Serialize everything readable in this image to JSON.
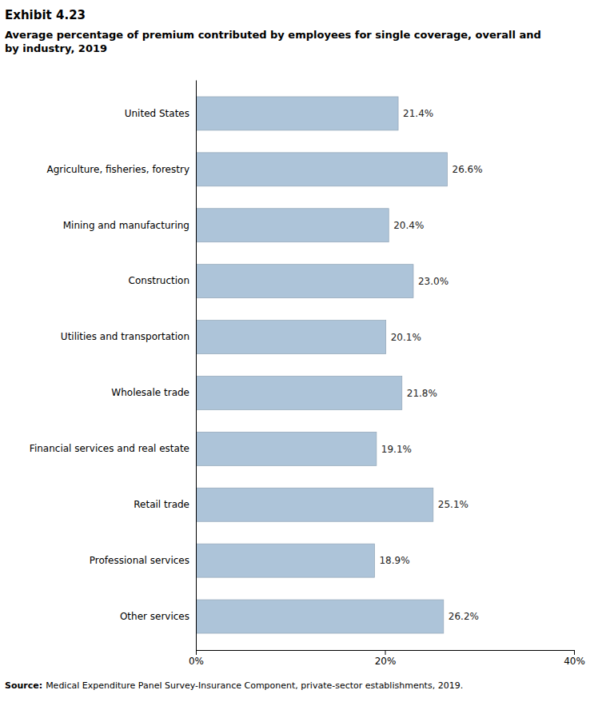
{
  "chart_data": {
    "type": "bar",
    "orientation": "horizontal",
    "title": "Exhibit 4.23",
    "subtitle": "Average percentage of premium contributed by employees for single coverage, overall and\nby industry, 2019",
    "categories": [
      "United States",
      "Agriculture, fisheries, forestry",
      "Mining and manufacturing",
      "Construction",
      "Utilities and transportation",
      "Wholesale trade",
      "Financial services and real estate",
      "Retail trade",
      "Professional services",
      "Other services"
    ],
    "values": [
      21.4,
      26.6,
      20.4,
      23.0,
      20.1,
      21.8,
      19.1,
      25.1,
      18.9,
      26.2
    ],
    "value_labels": [
      "21.4%",
      "26.6%",
      "20.4%",
      "23.0%",
      "20.1%",
      "21.8%",
      "19.1%",
      "25.1%",
      "18.9%",
      "26.2%"
    ],
    "data_labels": true,
    "color": "#adc4d9",
    "xlim": [
      0,
      40
    ],
    "xticks": [
      {
        "value": 0,
        "label": "0%"
      },
      {
        "value": 20,
        "label": "20%"
      },
      {
        "value": 40,
        "label": "40%"
      }
    ],
    "grid": false,
    "source": [
      "Source:",
      "Medical Expenditure Panel Survey-Insurance Component, private-sector establishments, 2019."
    ]
  }
}
